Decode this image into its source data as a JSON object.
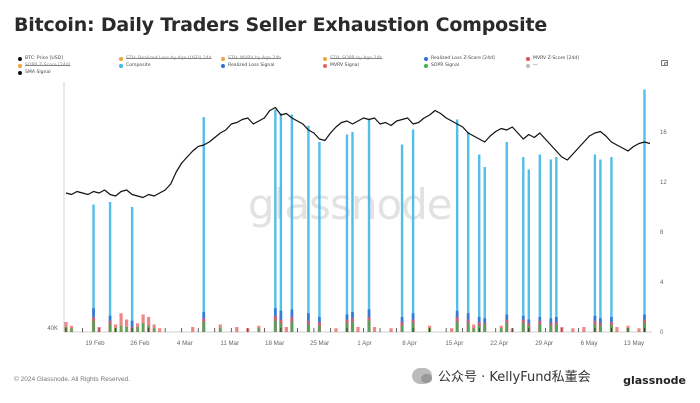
{
  "header": {
    "title": "Bitcoin: Daily Traders Seller Exhaustion Composite"
  },
  "watermark": "glassnode",
  "footer": {
    "copyright": "© 2024 Glassnode. All Rights Reserved.",
    "brand": "glassnode",
    "wechat": "公众号 · KellyFund私董会"
  },
  "legend": [
    {
      "label": "BTC: Price [USD]",
      "color": "#111111",
      "struck": false
    },
    {
      "label": "STH: Realized Loss by Age (USD) 24h",
      "color": "#f2a33a",
      "struck": true
    },
    {
      "label": "STH: MVRV by Age 24h",
      "color": "#f2a33a",
      "struck": true
    },
    {
      "label": "STH: SOPR by Age 24h",
      "color": "#f2a33a",
      "struck": true
    },
    {
      "label": "Realized Loss Z-Score [24d]",
      "color": "#2f6fd6",
      "struck": false
    },
    {
      "label": "MVRV Z-Score [24d]",
      "color": "#e05050",
      "struck": false
    },
    {
      "label": "SOPR Z-Score [24d]",
      "color": "#f2a33a",
      "struck": true
    },
    {
      "label": "Composite",
      "color": "#3fb7e8",
      "struck": false
    },
    {
      "label": "Realized Loss Signal",
      "color": "#2f6fd6",
      "struck": false
    },
    {
      "label": "MVRV Signal",
      "color": "#e86060",
      "struck": false
    },
    {
      "label": "SOPR Signal",
      "color": "#37b24d",
      "struck": false
    },
    {
      "label": "—",
      "color": "#bbbbbb",
      "struck": false
    },
    {
      "label": "SMA Signal",
      "color": "#111111",
      "struck": false
    }
  ],
  "chart_data": {
    "type": "line",
    "title": "Bitcoin: Daily Traders Seller Exhaustion Composite",
    "xlabel": "",
    "ylabel": "",
    "x_ticks": [
      "19 Feb",
      "26 Feb",
      "4 Mar",
      "11 Mar",
      "18 Mar",
      "25 Mar",
      "1 Apr",
      "8 Apr",
      "15 Apr",
      "22 Apr",
      "29 Apr",
      "6 May",
      "13 May"
    ],
    "y_left_ticks": [
      "40K"
    ],
    "y_right_ticks": [
      "0",
      "4",
      "8",
      "12",
      "16"
    ],
    "ylim_right": [
      0,
      20
    ],
    "grid": false,
    "legend_position": "top",
    "colors": {
      "price": "#111111",
      "composite": "#3fb7e8",
      "realized_loss_signal": "#2f6fd6",
      "mvrv_signal": "#e86060",
      "sopr_signal": "#37b24d"
    },
    "series": [
      {
        "name": "BTC: Price [USD]",
        "axis": "left",
        "values": [
          0.38,
          0.37,
          0.39,
          0.38,
          0.37,
          0.39,
          0.38,
          0.4,
          0.37,
          0.36,
          0.39,
          0.4,
          0.37,
          0.36,
          0.35,
          0.37,
          0.36,
          0.38,
          0.4,
          0.44,
          0.52,
          0.58,
          0.62,
          0.66,
          0.69,
          0.7,
          0.72,
          0.75,
          0.78,
          0.8,
          0.84,
          0.85,
          0.87,
          0.88,
          0.84,
          0.86,
          0.88,
          0.93,
          0.95,
          0.9,
          0.91,
          0.88,
          0.86,
          0.84,
          0.8,
          0.78,
          0.74,
          0.73,
          0.78,
          0.82,
          0.85,
          0.86,
          0.84,
          0.86,
          0.88,
          0.87,
          0.88,
          0.84,
          0.85,
          0.83,
          0.86,
          0.87,
          0.88,
          0.84,
          0.85,
          0.88,
          0.9,
          0.93,
          0.91,
          0.88,
          0.86,
          0.84,
          0.82,
          0.78,
          0.76,
          0.74,
          0.72,
          0.76,
          0.79,
          0.81,
          0.8,
          0.82,
          0.78,
          0.74,
          0.77,
          0.75,
          0.78,
          0.74,
          0.7,
          0.66,
          0.62,
          0.6,
          0.64,
          0.68,
          0.72,
          0.76,
          0.78,
          0.79,
          0.76,
          0.72,
          0.7,
          0.68,
          0.66,
          0.69,
          0.71,
          0.72,
          0.71
        ]
      },
      {
        "name": "Composite",
        "axis": "right",
        "values": [
          0,
          0,
          0,
          0,
          0,
          10.2,
          0,
          0,
          10.4,
          0,
          0,
          0,
          10.0,
          0,
          0,
          0,
          0,
          0,
          0,
          0,
          0,
          0,
          0,
          0,
          0,
          17.2,
          0,
          0,
          0,
          0,
          0,
          0,
          0,
          0,
          0,
          0,
          0,
          0,
          17.8,
          17.5,
          0,
          17.4,
          0,
          0,
          16.5,
          0,
          15.2,
          0,
          0,
          0,
          0,
          15.8,
          16.0,
          0,
          0,
          17.0,
          0,
          0,
          0,
          0,
          0,
          15.0,
          0,
          16.2,
          0,
          0,
          0,
          0,
          0,
          0,
          0,
          17.0,
          0,
          16.0,
          0,
          14.2,
          13.2,
          0,
          0,
          0,
          15.2,
          0,
          0,
          14.0,
          13.0,
          0,
          14.2,
          0,
          13.8,
          14.0,
          0,
          0,
          0,
          0,
          0,
          0,
          14.2,
          13.8,
          0,
          14.0,
          0,
          0,
          0,
          0,
          0,
          19.4
        ]
      },
      {
        "name": "Realized Loss Signal",
        "axis": "right",
        "values": [
          0,
          0,
          0,
          0,
          0,
          1.9,
          0,
          0,
          1.3,
          0,
          0,
          0,
          0.9,
          0,
          0,
          0,
          0,
          0,
          0,
          0,
          0,
          0,
          0,
          0,
          0,
          1.6,
          0,
          0,
          0,
          0,
          0,
          0,
          0,
          0,
          0,
          0,
          0,
          0,
          1.9,
          1.7,
          0,
          1.8,
          0,
          0,
          1.5,
          0,
          1.2,
          0,
          0,
          0,
          0,
          1.4,
          1.6,
          0,
          0,
          1.8,
          0,
          0,
          0,
          0,
          0,
          1.2,
          0,
          1.5,
          0,
          0,
          0,
          0,
          0,
          0,
          0,
          1.7,
          0,
          1.5,
          0,
          1.2,
          1.1,
          0,
          0,
          0,
          1.4,
          0,
          0,
          1.3,
          1.0,
          0,
          1.2,
          0,
          1.1,
          1.2,
          0,
          0,
          0,
          0,
          0,
          0,
          1.3,
          1.1,
          0,
          1.2,
          0,
          0,
          0,
          0,
          0,
          1.4
        ]
      },
      {
        "name": "MVRV Signal",
        "axis": "right",
        "values": [
          0.8,
          0.5,
          0,
          0,
          0,
          1.2,
          0.4,
          0,
          0.9,
          0.6,
          1.5,
          1.0,
          0.4,
          0.7,
          1.4,
          1.2,
          0.6,
          0.3,
          0,
          0,
          0,
          0,
          0,
          0.4,
          0,
          1.1,
          0,
          0,
          0.6,
          0,
          0,
          0.4,
          0,
          0.3,
          0,
          0.5,
          0,
          0,
          1.3,
          1.0,
          0.4,
          1.2,
          0,
          0,
          0.9,
          0,
          0.8,
          0,
          0,
          0.3,
          0,
          1.0,
          1.1,
          0.4,
          0,
          1.2,
          0.4,
          0,
          0,
          0.3,
          0,
          0.8,
          0,
          1.0,
          0,
          0,
          0.5,
          0,
          0,
          0,
          0.3,
          1.2,
          0,
          1.0,
          0.6,
          0.8,
          0.7,
          0,
          0,
          0.5,
          1.0,
          0.3,
          0,
          1.0,
          0.7,
          0,
          0.9,
          0,
          0.7,
          0.8,
          0.4,
          0,
          0.3,
          0,
          0.4,
          0,
          0.9,
          0.7,
          0,
          0.8,
          0.4,
          0,
          0.5,
          0,
          0.3,
          1.0
        ]
      },
      {
        "name": "SOPR Signal",
        "axis": "right",
        "values": [
          0.4,
          0.3,
          0,
          0,
          0,
          0.9,
          0,
          0,
          0.6,
          0.3,
          0.5,
          0.4,
          0.3,
          0.4,
          0.7,
          0.5,
          0.3,
          0,
          0,
          0,
          0,
          0,
          0,
          0,
          0,
          0.8,
          0,
          0,
          0.3,
          0,
          0,
          0,
          0,
          0,
          0,
          0.3,
          0,
          0,
          0.9,
          0.7,
          0,
          0.8,
          0,
          0,
          0.6,
          0,
          0.5,
          0,
          0,
          0,
          0,
          0.7,
          0.8,
          0,
          0,
          0.9,
          0,
          0,
          0,
          0,
          0,
          0.5,
          0,
          0.7,
          0,
          0,
          0.3,
          0,
          0,
          0,
          0,
          0.8,
          0,
          0.7,
          0.3,
          0.5,
          0.6,
          0,
          0,
          0.3,
          0.7,
          0,
          0,
          0.7,
          0.5,
          0,
          0.6,
          0,
          0.5,
          0.6,
          0,
          0,
          0,
          0,
          0,
          0,
          0.6,
          0.5,
          0,
          0.6,
          0,
          0,
          0.3,
          0,
          0,
          0.7
        ]
      }
    ]
  }
}
